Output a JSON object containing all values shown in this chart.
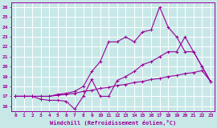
{
  "xlabel": "Windchill (Refroidissement éolien,°C)",
  "xlim": [
    -0.5,
    23.5
  ],
  "ylim": [
    15.5,
    26.5
  ],
  "xticks": [
    0,
    1,
    2,
    3,
    4,
    5,
    6,
    7,
    8,
    9,
    10,
    11,
    12,
    13,
    14,
    15,
    16,
    17,
    18,
    19,
    20,
    21,
    22,
    23
  ],
  "yticks": [
    16,
    17,
    18,
    19,
    20,
    21,
    22,
    23,
    24,
    25,
    26
  ],
  "bg_color": "#c8e8e8",
  "line_color": "#990099",
  "grid_color": "#ffffff",
  "line1_x": [
    0,
    1,
    2,
    3,
    4,
    5,
    6,
    7,
    8,
    9,
    10,
    11,
    12,
    13,
    14,
    15,
    16,
    17,
    18,
    19,
    20,
    21,
    22,
    23
  ],
  "line1_y": [
    17.0,
    17.0,
    17.0,
    16.7,
    16.6,
    16.6,
    16.5,
    15.7,
    17.0,
    18.7,
    17.0,
    17.0,
    18.6,
    19.0,
    19.5,
    20.2,
    20.5,
    21.0,
    21.5,
    21.5,
    23.0,
    21.5,
    20.0,
    18.5
  ],
  "line2_x": [
    0,
    1,
    2,
    3,
    4,
    5,
    6,
    7,
    8,
    9,
    10,
    11,
    12,
    13,
    14,
    15,
    16,
    17,
    18,
    19,
    20,
    21,
    22,
    23
  ],
  "line2_y": [
    17.0,
    17.0,
    17.0,
    17.0,
    17.0,
    17.1,
    17.2,
    17.3,
    17.5,
    17.6,
    17.8,
    17.9,
    18.1,
    18.2,
    18.4,
    18.5,
    18.7,
    18.8,
    19.0,
    19.1,
    19.3,
    19.4,
    19.6,
    18.5
  ],
  "line3_x": [
    0,
    1,
    2,
    3,
    4,
    5,
    6,
    7,
    8,
    9,
    10,
    11,
    12,
    13,
    14,
    15,
    16,
    17,
    18,
    19,
    20,
    21,
    22,
    23
  ],
  "line3_y": [
    17.0,
    17.0,
    17.0,
    17.0,
    17.0,
    17.2,
    17.3,
    17.5,
    18.0,
    19.5,
    20.5,
    22.5,
    22.5,
    23.0,
    22.5,
    23.5,
    23.7,
    26.0,
    24.0,
    23.0,
    21.5,
    21.5,
    20.0,
    18.5
  ]
}
